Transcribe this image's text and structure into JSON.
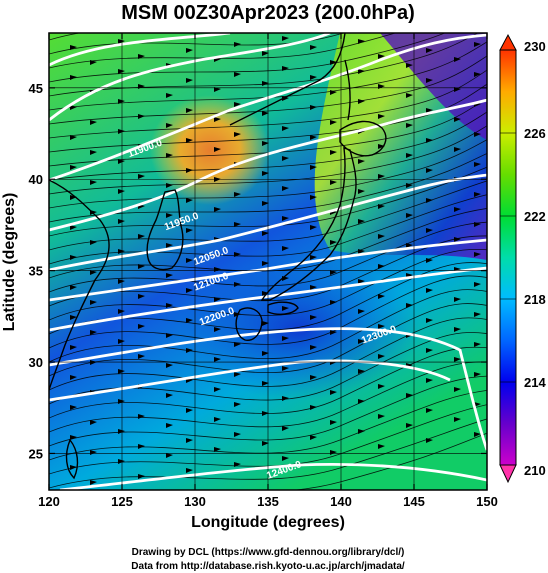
{
  "title": "MSM 00Z30Apr2023 (200.0hPa)",
  "x_axis": {
    "label": "Longitude (degrees)",
    "range": [
      120,
      150
    ],
    "ticks": [
      "120",
      "125",
      "130",
      "135",
      "140",
      "145",
      "150"
    ]
  },
  "y_axis": {
    "label": "Latitude  (degrees)",
    "range": [
      23,
      48
    ],
    "ticks": [
      "25",
      "30",
      "35",
      "40",
      "45"
    ]
  },
  "colorbar": {
    "range": [
      210,
      230
    ],
    "ticks": [
      "210",
      "214",
      "218",
      "222",
      "226",
      "230"
    ],
    "colors": [
      "#cc00cc",
      "#0000ee",
      "#00bbff",
      "#00dd33",
      "#ccee00",
      "#ff3300"
    ]
  },
  "contours": [
    {
      "label": "11900.0",
      "lon": 125.5,
      "lat": 41.2
    },
    {
      "label": "11950.0",
      "lon": 128.0,
      "lat": 37.2
    },
    {
      "label": "12050.0",
      "lon": 130.0,
      "lat": 35.3
    },
    {
      "label": "12100.0",
      "lon": 130.0,
      "lat": 33.9
    },
    {
      "label": "12200.0",
      "lon": 130.4,
      "lat": 32.0
    },
    {
      "label": "12300.0",
      "lon": 141.5,
      "lat": 31.0
    },
    {
      "label": "12400.0",
      "lon": 135.0,
      "lat": 23.6
    }
  ],
  "credits": {
    "line1": "Drawing by DCL (https://www.gfd-dennou.org/library/dcl/)",
    "line2": "Data from http://database.rish.kyoto-u.ac.jp/arch/jmadata/"
  }
}
